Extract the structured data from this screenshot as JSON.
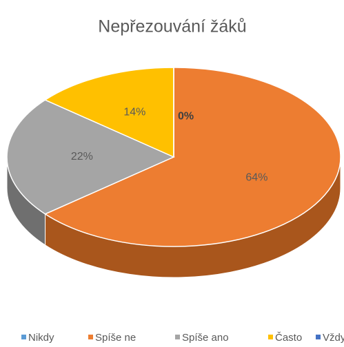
{
  "chart_data": {
    "type": "pie",
    "title": "Nepřezouvání žáků",
    "categories": [
      "Nikdy",
      "Spíše ne",
      "Spíše ano",
      "Často",
      "Vždy"
    ],
    "values": [
      0,
      64,
      22,
      14,
      0
    ],
    "value_labels": [
      "0%",
      "64%",
      "22%",
      "14%",
      null
    ],
    "colors": [
      "#5b9bd5",
      "#ed7d31",
      "#a5a5a5",
      "#ffc000",
      "#4472c4"
    ],
    "side_colors": [
      "#3d6f9c",
      "#a9561c",
      "#6f6f6f",
      "#b38700",
      "#2f4f8c"
    ],
    "legend": "bottom"
  }
}
